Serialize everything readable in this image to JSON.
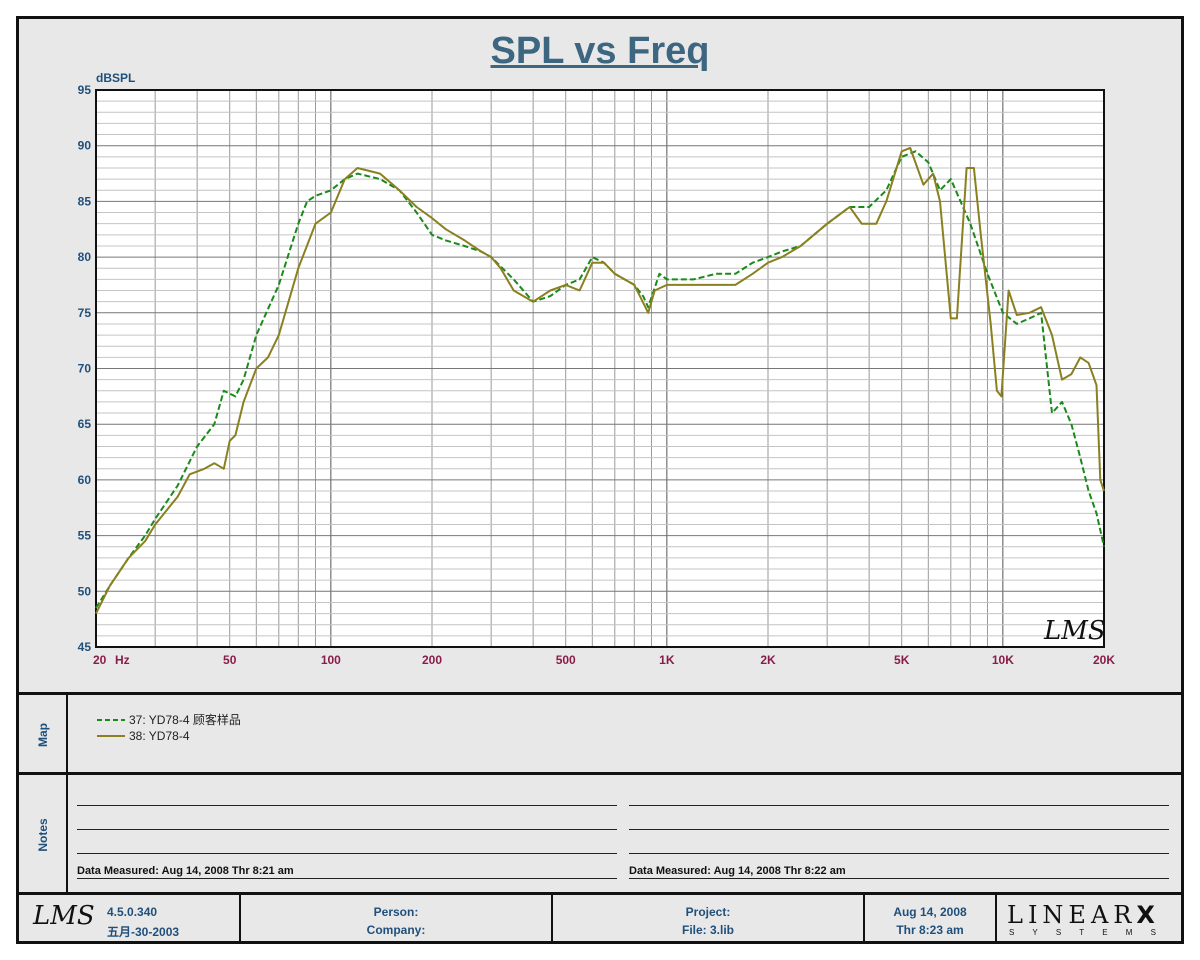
{
  "title": "SPL vs Freq",
  "chart_data": {
    "type": "line",
    "xscale": "log",
    "xlim": [
      20,
      20000
    ],
    "ylim": [
      45,
      95
    ],
    "ylabel": "dBSPL",
    "xunit": "Hz",
    "grid": true,
    "y_ticks": [
      "95",
      "90",
      "85",
      "80",
      "75",
      "70",
      "65",
      "60",
      "55",
      "50",
      "45"
    ],
    "x_ticks": [
      {
        "value": 20,
        "label": "20"
      },
      {
        "value": 50,
        "label": "50"
      },
      {
        "value": 100,
        "label": "100"
      },
      {
        "value": 200,
        "label": "200"
      },
      {
        "value": 500,
        "label": "500"
      },
      {
        "value": 1000,
        "label": "1K"
      },
      {
        "value": 2000,
        "label": "2K"
      },
      {
        "value": 5000,
        "label": "5K"
      },
      {
        "value": 10000,
        "label": "10K"
      },
      {
        "value": 20000,
        "label": "20K"
      }
    ],
    "series": [
      {
        "name": "37: YD78-4 顾客样品",
        "color": "#1a8a1a",
        "dash": true,
        "points": [
          [
            20,
            48.5
          ],
          [
            22,
            50.5
          ],
          [
            25,
            53
          ],
          [
            28,
            55
          ],
          [
            30,
            56.5
          ],
          [
            35,
            59.5
          ],
          [
            40,
            63
          ],
          [
            45,
            65
          ],
          [
            48,
            68
          ],
          [
            52,
            67.5
          ],
          [
            55,
            69
          ],
          [
            60,
            73
          ],
          [
            70,
            77.5
          ],
          [
            80,
            83
          ],
          [
            85,
            85
          ],
          [
            90,
            85.5
          ],
          [
            100,
            86
          ],
          [
            110,
            87
          ],
          [
            120,
            87.5
          ],
          [
            140,
            87
          ],
          [
            160,
            86
          ],
          [
            180,
            84
          ],
          [
            200,
            82
          ],
          [
            220,
            81.5
          ],
          [
            250,
            81
          ],
          [
            280,
            80.5
          ],
          [
            300,
            80
          ],
          [
            350,
            78
          ],
          [
            400,
            76
          ],
          [
            450,
            76.5
          ],
          [
            500,
            77.5
          ],
          [
            550,
            78
          ],
          [
            600,
            80
          ],
          [
            650,
            79.5
          ],
          [
            700,
            78.5
          ],
          [
            800,
            77.5
          ],
          [
            850,
            76.5
          ],
          [
            880,
            75.5
          ],
          [
            950,
            78.5
          ],
          [
            1000,
            78
          ],
          [
            1200,
            78
          ],
          [
            1400,
            78.5
          ],
          [
            1600,
            78.5
          ],
          [
            1800,
            79.5
          ],
          [
            2000,
            80
          ],
          [
            2200,
            80.5
          ],
          [
            2500,
            81
          ],
          [
            3000,
            83
          ],
          [
            3500,
            84.5
          ],
          [
            4000,
            84.5
          ],
          [
            4500,
            86
          ],
          [
            5000,
            89
          ],
          [
            5500,
            89.5
          ],
          [
            6000,
            88.5
          ],
          [
            6500,
            86
          ],
          [
            7000,
            87
          ],
          [
            8000,
            83
          ],
          [
            9000,
            78.5
          ],
          [
            10000,
            75
          ],
          [
            11000,
            74
          ],
          [
            12000,
            74.5
          ],
          [
            13000,
            75
          ],
          [
            14000,
            66
          ],
          [
            15000,
            67
          ],
          [
            16000,
            65
          ],
          [
            17000,
            62
          ],
          [
            18000,
            59
          ],
          [
            19000,
            57
          ],
          [
            20000,
            54
          ]
        ]
      },
      {
        "name": "38: YD78-4",
        "color": "#8a8020",
        "dash": false,
        "points": [
          [
            20,
            48
          ],
          [
            22,
            50.5
          ],
          [
            25,
            53
          ],
          [
            28,
            54.5
          ],
          [
            30,
            56
          ],
          [
            35,
            58.5
          ],
          [
            38,
            60.5
          ],
          [
            42,
            61
          ],
          [
            45,
            61.5
          ],
          [
            48,
            61
          ],
          [
            50,
            63.5
          ],
          [
            52,
            64
          ],
          [
            55,
            67
          ],
          [
            60,
            70
          ],
          [
            65,
            71
          ],
          [
            70,
            73
          ],
          [
            80,
            79
          ],
          [
            90,
            83
          ],
          [
            100,
            84
          ],
          [
            110,
            87
          ],
          [
            120,
            88
          ],
          [
            140,
            87.5
          ],
          [
            160,
            86
          ],
          [
            180,
            84.5
          ],
          [
            200,
            83.5
          ],
          [
            220,
            82.5
          ],
          [
            250,
            81.5
          ],
          [
            280,
            80.5
          ],
          [
            300,
            80
          ],
          [
            320,
            79
          ],
          [
            350,
            77
          ],
          [
            400,
            76
          ],
          [
            450,
            77
          ],
          [
            500,
            77.5
          ],
          [
            550,
            77
          ],
          [
            600,
            79.5
          ],
          [
            650,
            79.5
          ],
          [
            700,
            78.5
          ],
          [
            800,
            77.5
          ],
          [
            880,
            75
          ],
          [
            920,
            77
          ],
          [
            1000,
            77.5
          ],
          [
            1200,
            77.5
          ],
          [
            1400,
            77.5
          ],
          [
            1600,
            77.5
          ],
          [
            1800,
            78.5
          ],
          [
            2000,
            79.5
          ],
          [
            2200,
            80
          ],
          [
            2500,
            81
          ],
          [
            3000,
            83
          ],
          [
            3500,
            84.5
          ],
          [
            3800,
            83
          ],
          [
            4200,
            83
          ],
          [
            4500,
            85
          ],
          [
            5000,
            89.5
          ],
          [
            5300,
            89.8
          ],
          [
            5800,
            86.5
          ],
          [
            6200,
            87.5
          ],
          [
            6500,
            85
          ],
          [
            7000,
            74.5
          ],
          [
            7300,
            74.5
          ],
          [
            7800,
            88
          ],
          [
            8200,
            88
          ],
          [
            8600,
            82
          ],
          [
            9200,
            74
          ],
          [
            9600,
            68
          ],
          [
            9900,
            67.5
          ],
          [
            10400,
            77
          ],
          [
            11000,
            74.8
          ],
          [
            12000,
            75
          ],
          [
            13000,
            75.5
          ],
          [
            14000,
            73
          ],
          [
            15000,
            69
          ],
          [
            16000,
            69.5
          ],
          [
            17000,
            71
          ],
          [
            18000,
            70.5
          ],
          [
            19000,
            68.5
          ],
          [
            19500,
            60
          ],
          [
            20000,
            59
          ]
        ]
      }
    ]
  },
  "watermark": "LMS",
  "map": {
    "label": "Map",
    "legend": [
      {
        "text": "37:  YD78-4  顾客样品",
        "color": "#1a8a1a",
        "dash": true
      },
      {
        "text": "38:  YD78-4",
        "color": "#8a8020",
        "dash": false
      }
    ]
  },
  "notes": {
    "label": "Notes",
    "left": "Data Measured: Aug 14, 2008  Thr  8:21 am",
    "right": "Data Measured: Aug 14, 2008  Thr  8:22 am"
  },
  "footer": {
    "logo": "LMS",
    "version": "4.5.0.340",
    "version_date": "五月-30-2003",
    "person": "Person:",
    "company": "Company:",
    "project": "Project:",
    "file": "File: 3.lib",
    "date": "Aug 14, 2008",
    "time": "Thr  8:23 am",
    "brand": "LINEAR",
    "brand_x": "X",
    "brand_sub": "S Y S T E M S"
  }
}
